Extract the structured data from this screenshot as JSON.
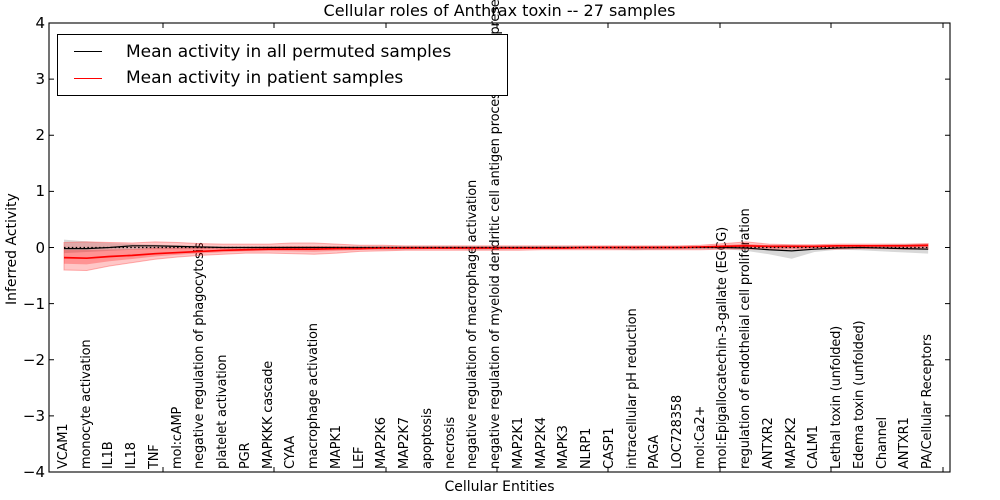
{
  "title": "Cellular roles of Anthrax toxin -- 27 samples",
  "legend": {
    "items": [
      {
        "label": "Mean activity in all permuted samples",
        "color": "#000000"
      },
      {
        "label": "Mean activity in patient samples",
        "color": "#ff0000"
      }
    ]
  },
  "chart_data": {
    "type": "line",
    "title": "Cellular roles of Anthrax toxin -- 27 samples",
    "xlabel": "Cellular Entities",
    "ylabel": "Inferred Activity",
    "ylim": [
      -4,
      4
    ],
    "yticks": [
      4,
      3,
      2,
      1,
      0,
      -1,
      -2,
      -3,
      -4
    ],
    "ytick_labels": [
      "4",
      "3",
      "2",
      "1",
      "0",
      "−1",
      "−2",
      "−3",
      "−4"
    ],
    "grid": false,
    "legend_position": "upper left",
    "zero_line_style": "dotted",
    "categories": [
      "VCAM1",
      "monocyte activation",
      "IL1B",
      "IL18",
      "TNF",
      "mol:cAMP",
      "negative regulation of phagocytosis",
      "platelet activation",
      "PGR",
      "MAPKKK cascade",
      "CYAA",
      "macrophage activation",
      "MAPK1",
      "LEF",
      "MAP2K6",
      "MAP2K7",
      "apoptosis",
      "necrosis",
      "negative regulation of macrophage activation",
      "negative regulation of myeloid dendritic cell antigen processing and presentation",
      "MAP2K1",
      "MAP2K4",
      "MAPK3",
      "NLRP1",
      "CASP1",
      "intracellular pH reduction",
      "PAGA",
      "LOC728358",
      "mol:Ca2+",
      "mol:Epigallocatechin-3-gallate (EGCG)",
      "regulation of endothelial cell proliferation",
      "ANTXR2",
      "MAP2K2",
      "CALM1",
      "Lethal toxin (unfolded)",
      "Edema toxin (unfolded)",
      "Channel",
      "ANTXR1",
      "PA/Cellular Receptors"
    ],
    "series": [
      {
        "name": "Mean activity in all permuted samples",
        "color": "#000000",
        "band_color": "#999999",
        "values": [
          -0.02,
          -0.02,
          0.0,
          0.03,
          0.03,
          0.02,
          0.01,
          0.0,
          0.0,
          0.0,
          0.0,
          0.0,
          0.0,
          0.0,
          0.0,
          0.0,
          0.0,
          0.0,
          0.0,
          0.0,
          0.0,
          0.0,
          0.0,
          0.0,
          0.0,
          0.0,
          0.0,
          0.0,
          0.0,
          0.0,
          -0.01,
          -0.04,
          -0.06,
          -0.03,
          -0.01,
          0.0,
          -0.01,
          -0.02,
          -0.03
        ],
        "band_upper": [
          0.14,
          0.11,
          0.08,
          0.06,
          0.05,
          0.04,
          0.03,
          0.02,
          0.02,
          0.02,
          0.02,
          0.02,
          0.02,
          0.02,
          0.02,
          0.02,
          0.02,
          0.02,
          0.02,
          0.02,
          0.02,
          0.02,
          0.02,
          0.02,
          0.02,
          0.02,
          0.02,
          0.02,
          0.02,
          0.02,
          0.03,
          0.04,
          0.05,
          0.03,
          0.03,
          0.04,
          0.05,
          0.06,
          0.06
        ],
        "band_lower": [
          -0.1,
          -0.08,
          -0.06,
          -0.04,
          -0.03,
          -0.03,
          -0.03,
          -0.02,
          -0.02,
          -0.02,
          -0.03,
          -0.03,
          -0.03,
          -0.02,
          -0.04,
          -0.04,
          -0.03,
          -0.03,
          -0.04,
          -0.04,
          -0.03,
          -0.02,
          -0.02,
          -0.02,
          -0.03,
          -0.05,
          -0.04,
          -0.03,
          -0.02,
          -0.03,
          -0.06,
          -0.12,
          -0.2,
          -0.08,
          -0.04,
          -0.05,
          -0.07,
          -0.09,
          -0.11
        ]
      },
      {
        "name": "Mean activity in patient samples",
        "color": "#ff0000",
        "band_color": "#ff0000",
        "values": [
          -0.18,
          -0.19,
          -0.16,
          -0.14,
          -0.11,
          -0.09,
          -0.07,
          -0.05,
          -0.04,
          -0.03,
          -0.03,
          -0.03,
          -0.02,
          -0.02,
          -0.01,
          -0.01,
          -0.01,
          -0.01,
          -0.01,
          -0.01,
          -0.01,
          -0.01,
          -0.01,
          0.0,
          0.0,
          0.0,
          0.0,
          0.0,
          0.01,
          0.02,
          0.03,
          0.02,
          0.02,
          0.02,
          0.03,
          0.03,
          0.03,
          0.03,
          0.04
        ],
        "band_upper": [
          0.09,
          0.1,
          0.09,
          0.08,
          0.1,
          0.09,
          0.07,
          0.06,
          0.06,
          0.06,
          0.08,
          0.08,
          0.06,
          0.04,
          0.04,
          0.03,
          0.03,
          0.03,
          0.03,
          0.03,
          0.03,
          0.03,
          0.03,
          0.03,
          0.03,
          0.03,
          0.03,
          0.03,
          0.04,
          0.07,
          0.1,
          0.06,
          0.05,
          0.05,
          0.06,
          0.06,
          0.06,
          0.06,
          0.07
        ],
        "band_lower": [
          -0.4,
          -0.41,
          -0.33,
          -0.27,
          -0.21,
          -0.17,
          -0.14,
          -0.12,
          -0.1,
          -0.1,
          -0.11,
          -0.12,
          -0.1,
          -0.07,
          -0.06,
          -0.05,
          -0.05,
          -0.05,
          -0.05,
          -0.05,
          -0.05,
          -0.04,
          -0.04,
          -0.04,
          -0.04,
          -0.04,
          -0.04,
          -0.04,
          -0.04,
          -0.03,
          -0.03,
          -0.03,
          -0.03,
          -0.03,
          -0.03,
          -0.02,
          -0.02,
          -0.03,
          -0.03
        ]
      }
    ],
    "n_samples_in_title": 27
  }
}
